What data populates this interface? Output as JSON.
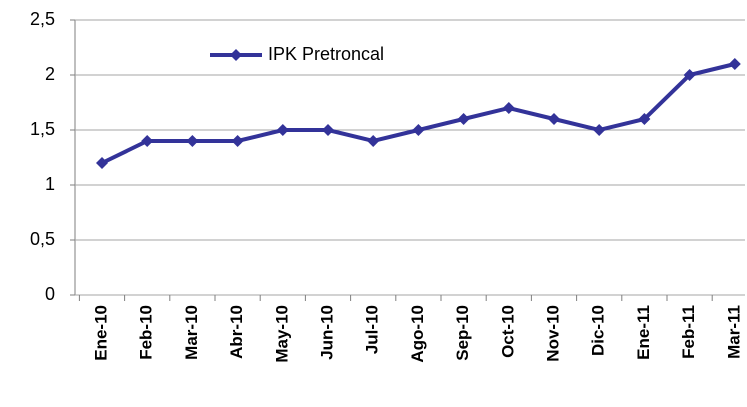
{
  "chart_data": {
    "type": "line",
    "categories": [
      "Ene-10",
      "Feb-10",
      "Mar-10",
      "Abr-10",
      "May-10",
      "Jun-10",
      "Jul-10",
      "Ago-10",
      "Sep-10",
      "Oct-10",
      "Nov-10",
      "Dic-10",
      "Ene-11",
      "Feb-11",
      "Mar-11"
    ],
    "series": [
      {
        "name": "IPK Pretroncal",
        "color": "#333399",
        "values": [
          1.2,
          1.4,
          1.4,
          1.4,
          1.5,
          1.5,
          1.4,
          1.5,
          1.6,
          1.7,
          1.6,
          1.5,
          1.6,
          2.0,
          2.1
        ]
      }
    ],
    "ylim": [
      0,
      2.5
    ],
    "yticks": [
      0,
      {
        "value": 0.5,
        "label": "0,5"
      },
      1,
      {
        "value": 1.5,
        "label": "1,5"
      },
      2,
      {
        "value": 2.5,
        "label": "2,5"
      }
    ],
    "grid": true,
    "legend": "top-left"
  }
}
